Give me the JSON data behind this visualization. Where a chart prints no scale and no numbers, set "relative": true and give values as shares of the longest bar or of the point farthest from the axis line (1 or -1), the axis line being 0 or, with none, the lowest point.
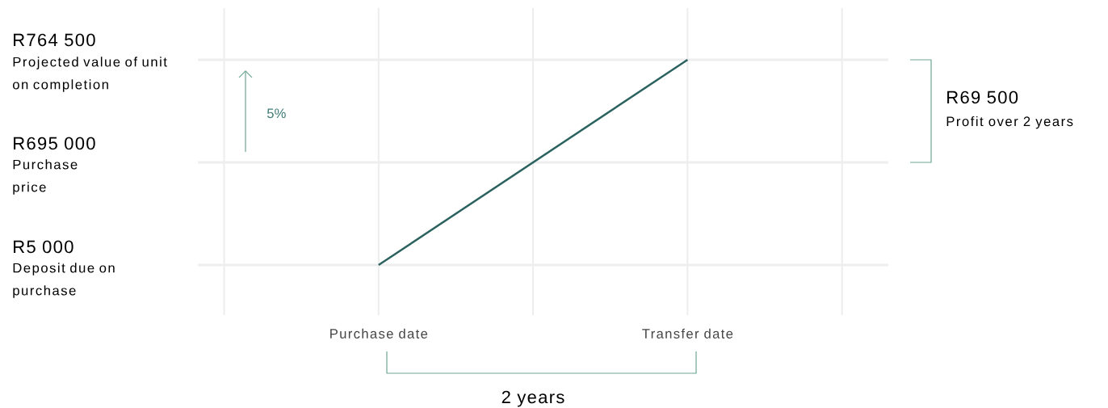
{
  "chart_data": {
    "type": "line",
    "relative": true,
    "grid": "x",
    "color": "#2b625f",
    "categories": [
      null,
      "Purchase date",
      null,
      "Transfer date",
      null
    ],
    "values": [
      null,
      0,
      null,
      1,
      null
    ],
    "ref_lines": [
      {
        "axis": "y",
        "value": 1,
        "color": "#eeeeee"
      },
      {
        "axis": "y",
        "value": 0.5,
        "color": "#eeeeee"
      },
      {
        "axis": "y",
        "value": 0,
        "color": "#eeeeee"
      }
    ],
    "annotations": [
      "R764 500",
      "Projected value of unit on completion",
      "R695 000",
      "Purchase price",
      "R5 000",
      "Deposit due on purchase",
      "5%",
      "R69 500",
      "Profit over 2 years",
      "2 years"
    ]
  }
}
